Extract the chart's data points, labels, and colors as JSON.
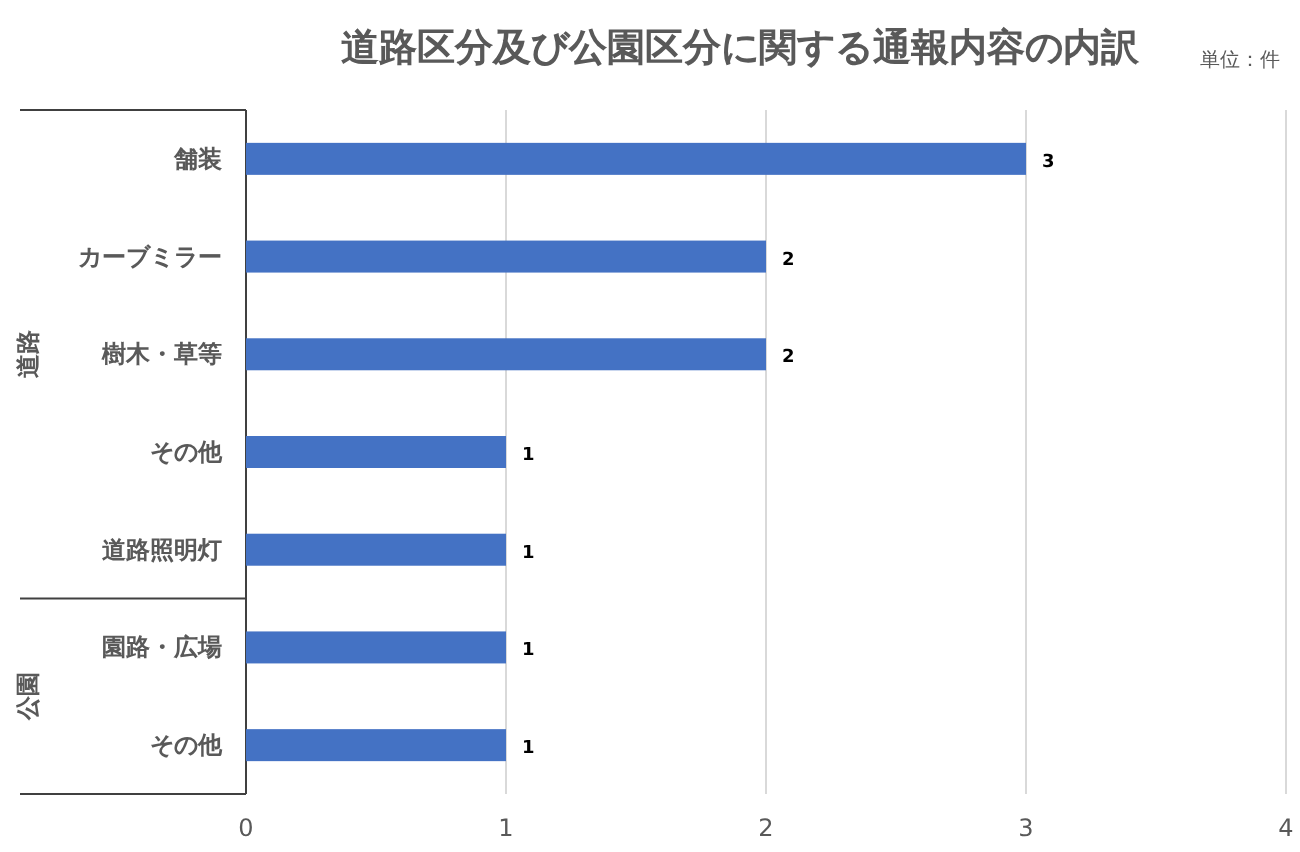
{
  "chart_data": {
    "type": "bar",
    "orientation": "horizontal",
    "title": "道路区分及び公園区分に関する通報内容の内訳",
    "categories": [
      "舗装",
      "カーブミラー",
      "樹木・草等",
      "その他",
      "道路照明灯",
      "園路・広場",
      "その他"
    ],
    "values": [
      3,
      2,
      2,
      1,
      1,
      1,
      1
    ],
    "color": "#4472c4",
    "xlim": [
      0,
      4
    ],
    "xticks": [
      0,
      1,
      2,
      3,
      4
    ],
    "grid": "x",
    "data_labels": true,
    "annotations": [
      "単位：件",
      "道路",
      "公園"
    ]
  }
}
